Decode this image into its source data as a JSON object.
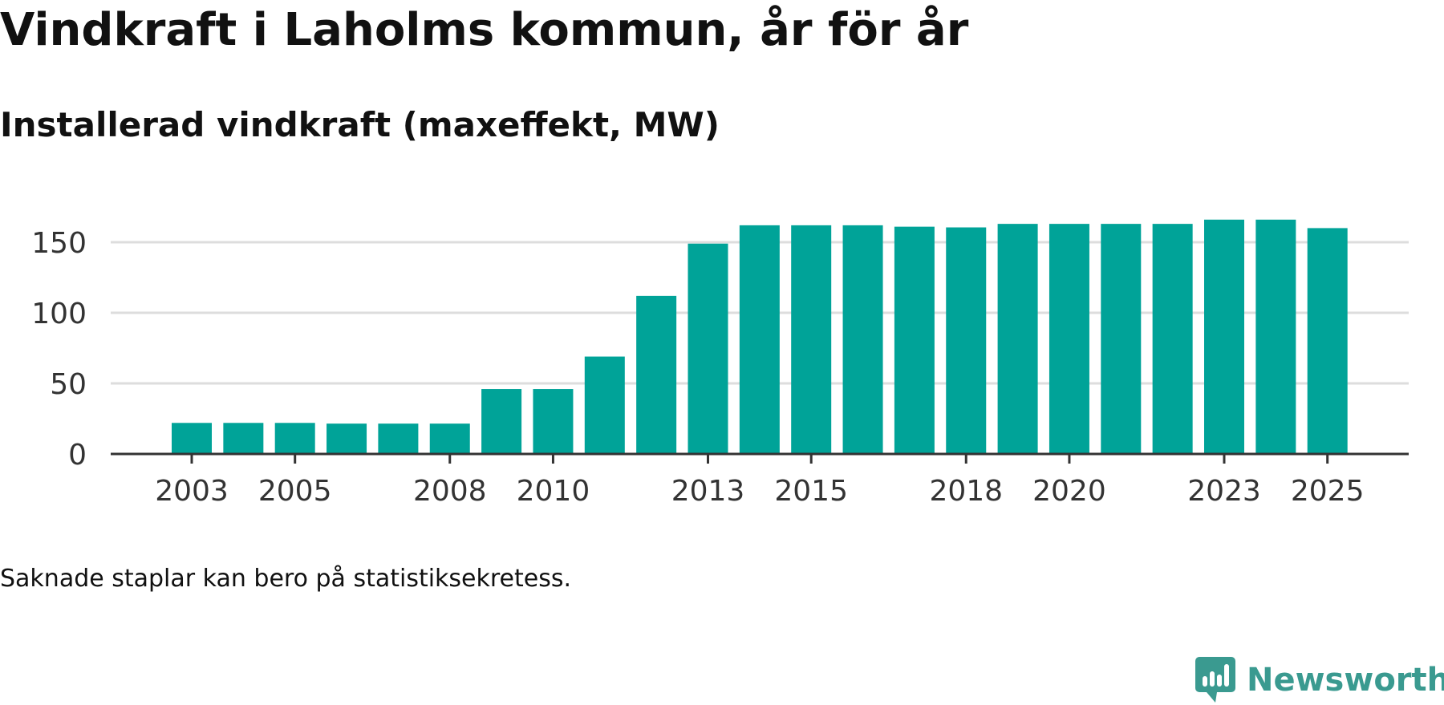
{
  "header": {
    "title": "Vindkraft i Laholms kommun, år för år",
    "subtitle": "Installerad vindkraft (maxeffekt, MW)"
  },
  "footer": {
    "note": "Saknade staplar kan bero på statistiksekretess.",
    "brand": "Newsworthy",
    "brand_icon": "newsworthy-logo-icon"
  },
  "colors": {
    "bar": "#00a398",
    "grid": "#dddddd",
    "axis": "#333333",
    "brand": "#3a9a90"
  },
  "chart_data": {
    "type": "bar",
    "title": "Installerad vindkraft (maxeffekt, MW)",
    "xlabel": "",
    "ylabel": "",
    "categories": [
      2003,
      2004,
      2005,
      2006,
      2007,
      2008,
      2009,
      2010,
      2011,
      2012,
      2013,
      2014,
      2015,
      2016,
      2017,
      2018,
      2019,
      2020,
      2021,
      2022,
      2023,
      2024,
      2025
    ],
    "values": [
      22,
      22,
      22,
      21.5,
      21.5,
      21.5,
      46,
      46,
      69,
      112,
      149,
      162,
      162,
      162,
      161,
      160.5,
      163,
      163,
      163,
      163,
      166,
      166,
      160
    ],
    "x_tick_labels": [
      "2003",
      "2005",
      "2008",
      "2010",
      "2013",
      "2015",
      "2018",
      "2020",
      "2023",
      "2025"
    ],
    "y_ticks": [
      0,
      50,
      100,
      150
    ],
    "ylim": [
      0,
      170
    ],
    "grid": true
  }
}
